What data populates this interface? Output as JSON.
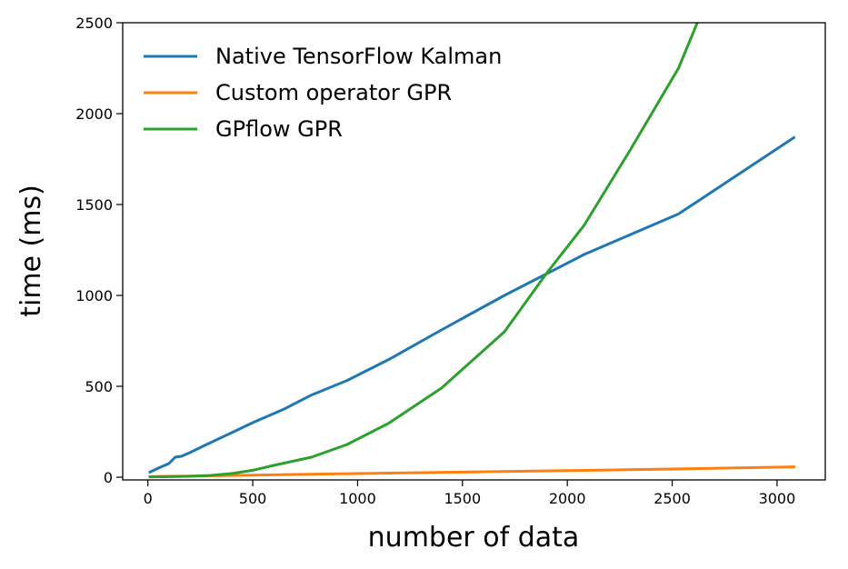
{
  "chart_data": {
    "type": "line",
    "xlabel": "number of data",
    "ylabel": "time (ms)",
    "xlim": [
      -120,
      3230
    ],
    "ylim": [
      -15,
      2500
    ],
    "xticks": [
      0,
      500,
      1000,
      1500,
      2000,
      2500,
      3000
    ],
    "yticks": [
      0,
      500,
      1000,
      1500,
      2000,
      2500
    ],
    "legend_position": "top-left",
    "grid": false,
    "series": [
      {
        "name": "Native TensorFlow Kalman",
        "color": "#1f77b4",
        "x": [
          10,
          50,
          100,
          130,
          160,
          200,
          280,
          400,
          500,
          650,
          780,
          950,
          1150,
          1400,
          1700,
          2080,
          2530,
          3080
        ],
        "y": [
          28,
          50,
          75,
          110,
          115,
          135,
          180,
          245,
          300,
          375,
          452,
          532,
          648,
          810,
          1000,
          1225,
          1448,
          1868
        ]
      },
      {
        "name": "Custom operator GPR",
        "color": "#ff7f0e",
        "x": [
          10,
          100,
          250,
          500,
          1000,
          1500,
          2000,
          2500,
          3080
        ],
        "y": [
          3,
          5,
          7,
          11,
          20,
          28,
          36,
          45,
          57
        ]
      },
      {
        "name": "GPflow GPR",
        "color": "#2ca02c",
        "x": [
          10,
          100,
          200,
          300,
          400,
          500,
          600,
          780,
          950,
          1150,
          1400,
          1700,
          1900,
          2080,
          2300,
          2530,
          2620
        ],
        "y": [
          2,
          3,
          5,
          10,
          20,
          38,
          65,
          110,
          180,
          298,
          490,
          800,
          1120,
          1385,
          1800,
          2250,
          2500
        ]
      }
    ]
  }
}
